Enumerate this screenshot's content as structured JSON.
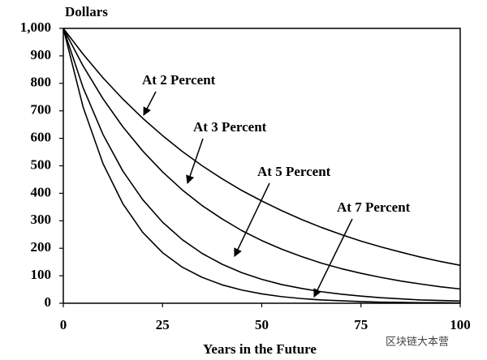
{
  "chart_data": {
    "type": "line",
    "y_axis_label": "Dollars",
    "x_axis_label": "Years in the Future",
    "watermark": "区块链大本营",
    "x": [
      0,
      5,
      10,
      15,
      20,
      25,
      30,
      35,
      40,
      45,
      50,
      55,
      60,
      65,
      70,
      75,
      80,
      85,
      90,
      95,
      100
    ],
    "series": [
      {
        "name": "At 2 Percent",
        "color": "#000000",
        "values": [
          1000,
          906,
          820,
          743,
          673,
          610,
          552,
          500,
          453,
          410,
          372,
          337,
          305,
          276,
          250,
          226,
          205,
          186,
          168,
          152,
          138
        ]
      },
      {
        "name": "At 3 Percent",
        "color": "#000000",
        "values": [
          1000,
          863,
          744,
          642,
          554,
          478,
          412,
          355,
          307,
          264,
          228,
          197,
          170,
          146,
          126,
          109,
          94,
          81,
          70,
          60,
          52
        ]
      },
      {
        "name": "At 5 Percent",
        "color": "#000000",
        "values": [
          1000,
          784,
          614,
          481,
          377,
          295,
          231,
          181,
          142,
          111,
          87,
          68,
          54,
          42,
          33,
          26,
          20,
          16,
          12,
          10,
          8
        ]
      },
      {
        "name": "At 7 Percent",
        "color": "#000000",
        "values": [
          1000,
          713,
          508,
          362,
          258,
          184,
          131,
          94,
          67,
          48,
          34,
          24,
          17,
          12,
          9,
          6,
          4,
          3,
          2,
          2,
          1
        ]
      }
    ],
    "xlim": [
      0,
      100
    ],
    "xticks": [
      0,
      25,
      50,
      75,
      100
    ],
    "ylim": [
      0,
      1000
    ],
    "yticks": [
      0,
      100,
      200,
      300,
      400,
      500,
      600,
      700,
      800,
      900,
      {
        "value": 1000,
        "label": "1,000"
      }
    ],
    "grid": false
  }
}
